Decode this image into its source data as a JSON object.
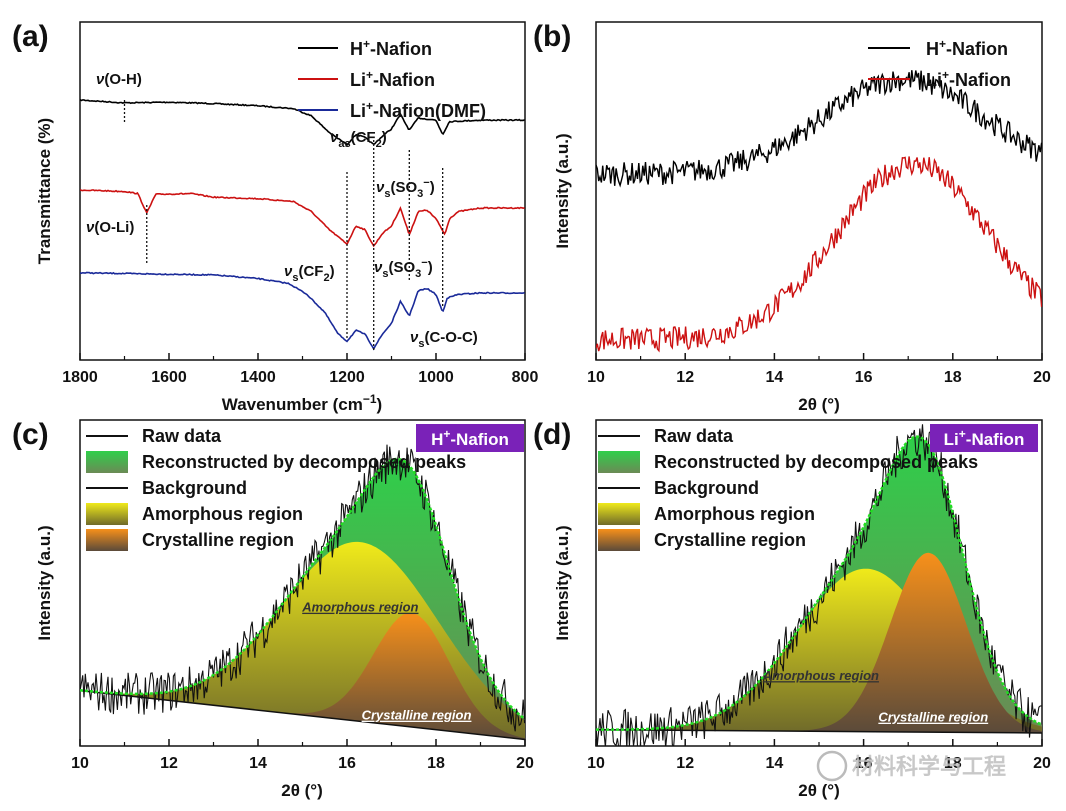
{
  "chart_data": [
    {
      "panel": "(a)",
      "type": "line",
      "xlabel": "Wavenumber (cm",
      "xlabel_sup": "−1",
      "xlabel_end": ")",
      "ylabel": "Transmittance (%)",
      "xlim": [
        1800,
        800
      ],
      "x_ticks": [
        "1800",
        "1600",
        "1400",
        "1200",
        "1000",
        "800"
      ],
      "legend": [
        {
          "pre": "H",
          "sup": "+",
          "post": "-Nafion",
          "color": "#000000"
        },
        {
          "pre": "Li",
          "sup": "+",
          "post": "-Nafion",
          "color": "#cc1111"
        },
        {
          "pre": "Li",
          "sup": "+",
          "post": "-Nafion(DMF)",
          "color": "#1a2a99"
        }
      ],
      "series": [
        {
          "name": "H+-Nafion",
          "color": "#000000",
          "offset": 0,
          "points": [
            [
              1800,
              0
            ],
            [
              1700,
              0.04
            ],
            [
              1600,
              0.03
            ],
            [
              1500,
              0.05
            ],
            [
              1400,
              0.08
            ],
            [
              1320,
              0.12
            ],
            [
              1280,
              0.22
            ],
            [
              1240,
              0.45
            ],
            [
              1200,
              0.62
            ],
            [
              1180,
              0.48
            ],
            [
              1160,
              0.52
            ],
            [
              1140,
              0.62
            ],
            [
              1120,
              0.5
            ],
            [
              1100,
              0.4
            ],
            [
              1080,
              0.2
            ],
            [
              1060,
              0.42
            ],
            [
              1040,
              0.25
            ],
            [
              1000,
              0.28
            ],
            [
              985,
              0.48
            ],
            [
              970,
              0.3
            ],
            [
              900,
              0.28
            ],
            [
              800,
              0.28
            ]
          ]
        },
        {
          "name": "Li+-Nafion",
          "color": "#cc1111",
          "offset": 1.25,
          "points": [
            [
              1800,
              0
            ],
            [
              1700,
              0.02
            ],
            [
              1670,
              0.05
            ],
            [
              1650,
              0.32
            ],
            [
              1630,
              0.06
            ],
            [
              1550,
              0.05
            ],
            [
              1500,
              0.1
            ],
            [
              1400,
              0.12
            ],
            [
              1320,
              0.16
            ],
            [
              1280,
              0.3
            ],
            [
              1240,
              0.55
            ],
            [
              1200,
              0.75
            ],
            [
              1180,
              0.5
            ],
            [
              1160,
              0.55
            ],
            [
              1140,
              0.78
            ],
            [
              1120,
              0.6
            ],
            [
              1100,
              0.5
            ],
            [
              1080,
              0.25
            ],
            [
              1060,
              0.62
            ],
            [
              1040,
              0.3
            ],
            [
              1020,
              0.28
            ],
            [
              1000,
              0.4
            ],
            [
              980,
              0.62
            ],
            [
              970,
              0.4
            ],
            [
              950,
              0.3
            ],
            [
              900,
              0.25
            ],
            [
              800,
              0.25
            ]
          ]
        },
        {
          "name": "Li+-Nafion(DMF)",
          "color": "#1a2a99",
          "offset": 2.4,
          "points": [
            [
              1800,
              0
            ],
            [
              1700,
              0.01
            ],
            [
              1600,
              0.02
            ],
            [
              1500,
              0.03
            ],
            [
              1400,
              0.08
            ],
            [
              1330,
              0.15
            ],
            [
              1290,
              0.3
            ],
            [
              1250,
              0.55
            ],
            [
              1220,
              0.85
            ],
            [
              1200,
              0.95
            ],
            [
              1180,
              0.8
            ],
            [
              1160,
              0.85
            ],
            [
              1140,
              1.05
            ],
            [
              1120,
              0.85
            ],
            [
              1100,
              0.7
            ],
            [
              1080,
              0.4
            ],
            [
              1060,
              0.6
            ],
            [
              1040,
              0.25
            ],
            [
              1020,
              0.22
            ],
            [
              1000,
              0.3
            ],
            [
              985,
              0.55
            ],
            [
              975,
              0.35
            ],
            [
              950,
              0.3
            ],
            [
              900,
              0.28
            ],
            [
              800,
              0.28
            ]
          ]
        }
      ],
      "annotations": [
        {
          "pre": "ν",
          "text": "(O-H)",
          "sub": ""
        },
        {
          "pre": "ν",
          "text": "(O-Li)",
          "sub": ""
        },
        {
          "pre": "ν",
          "text": "(CF",
          "sub": "as",
          "mid": "2",
          "end": ")"
        },
        {
          "pre": "ν",
          "text": "(SO",
          "sub": "s",
          "mid": "3",
          "sup": "−",
          "end": ")"
        },
        {
          "pre": "ν",
          "text": "(CF",
          "sub": "s",
          "mid": "2",
          "end": ")"
        },
        {
          "pre": "ν",
          "text": "(SO",
          "sub": "s",
          "mid": "3",
          "sup": "−",
          "end": ")"
        },
        {
          "pre": "ν",
          "text": "(C-O-C)",
          "sub": "s"
        }
      ],
      "marker_lines": [
        1700,
        1650,
        1200,
        1140,
        1060,
        985
      ]
    },
    {
      "panel": "(b)",
      "type": "line",
      "xlabel": "2θ (°)",
      "ylabel": "Intensity (a.u.)",
      "xlim": [
        10,
        20
      ],
      "x_ticks": [
        "10",
        "12",
        "14",
        "16",
        "18",
        "20"
      ],
      "legend": [
        {
          "pre": "H",
          "sup": "+",
          "post": "-Nafion",
          "color": "#000000"
        },
        {
          "pre": "Li",
          "sup": "+",
          "post": "-Nafion",
          "color": "#cc1111"
        }
      ],
      "series": [
        {
          "name": "H+-Nafion",
          "color": "#000000",
          "base": 0.55,
          "peak_center": 16.9,
          "peak_width": 1.8,
          "peak_height": 0.28,
          "noise": 0.035
        },
        {
          "name": "Li+-Nafion",
          "color": "#cc1111",
          "base": 0.06,
          "peak_center": 17.1,
          "peak_width": 1.7,
          "peak_height": 0.52,
          "noise": 0.035
        }
      ]
    },
    {
      "panel": "(c)",
      "type": "area",
      "xlabel": "2θ (°)",
      "ylabel": "Intensity (a.u.)",
      "xlim": [
        10,
        20
      ],
      "x_ticks": [
        "10",
        "12",
        "14",
        "16",
        "18",
        "20"
      ],
      "tag": {
        "pre": "H",
        "sup": "+",
        "post": "-Nafion"
      },
      "legend": [
        "Raw data",
        "Reconstructed by decomposed peaks",
        "Background",
        "Amorphous region",
        "Crystalline region"
      ],
      "background": [
        [
          10,
          0.17
        ],
        [
          20,
          0.02
        ]
      ],
      "amorphous": {
        "center": 16.3,
        "width": 1.75,
        "height": 0.55
      },
      "crystalline": {
        "center": 17.45,
        "width": 0.85,
        "height": 0.35
      },
      "region_labels": {
        "amorphous": "Amorphous region",
        "crystalline": "Crystalline region"
      }
    },
    {
      "panel": "(d)",
      "type": "area",
      "xlabel": "2θ (°)",
      "ylabel": "Intensity (a.u.)",
      "xlim": [
        10,
        20
      ],
      "x_ticks": [
        "10",
        "12",
        "14",
        "16",
        "18",
        "20"
      ],
      "tag": {
        "pre": "Li",
        "sup": "+",
        "post": "-Nafion"
      },
      "legend": [
        "Raw data",
        "Reconstructed by decomposed peaks",
        "Background",
        "Amorphous region",
        "Crystalline region"
      ],
      "background": [
        [
          10,
          0.05
        ],
        [
          20,
          0.04
        ]
      ],
      "amorphous": {
        "center": 16.05,
        "width": 1.55,
        "height": 0.5
      },
      "crystalline": {
        "center": 17.45,
        "width": 0.85,
        "height": 0.55
      },
      "region_labels": {
        "amorphous": "Amorphous region",
        "crystalline": "Crystalline region"
      }
    }
  ],
  "watermark": "材料科学与工程",
  "colors": {
    "green": "#2fbf4a",
    "green_line": "#22dd22",
    "yellow": "#e8e01a",
    "orange": "#f28c1e",
    "tag_bg": "#7a22b8",
    "dark": "#111111"
  }
}
